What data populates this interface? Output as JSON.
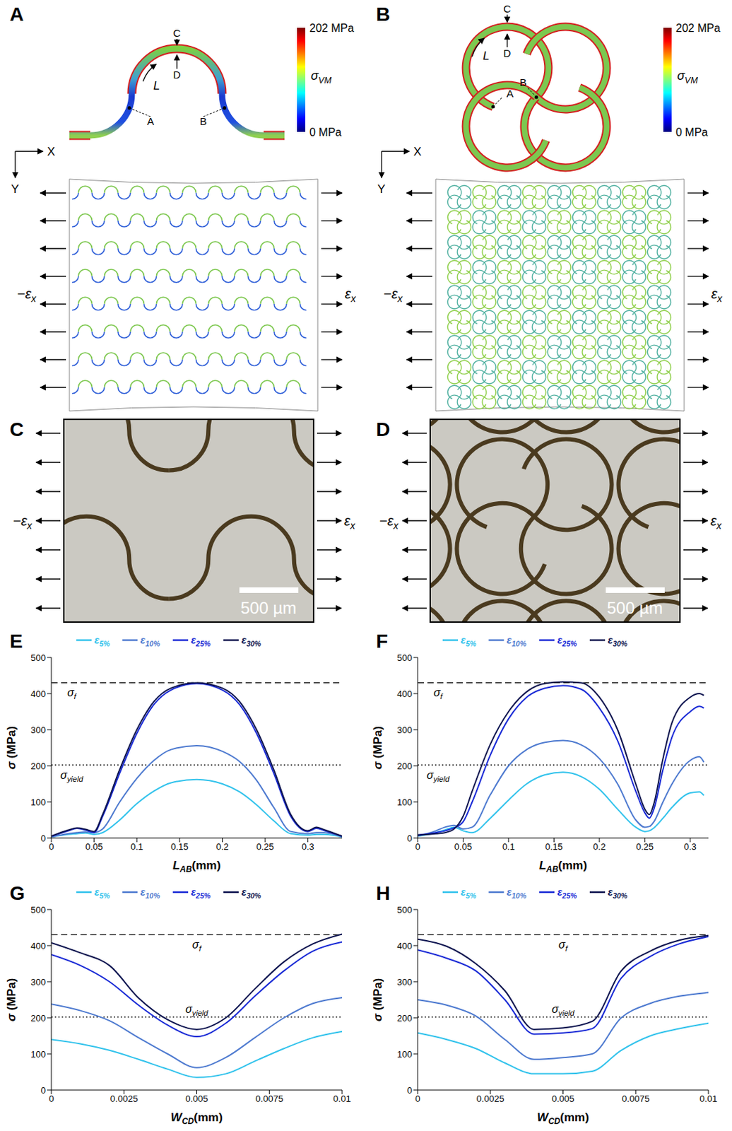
{
  "panels": {
    "A": {
      "letter": "A",
      "axes": [
        "X",
        "Y"
      ],
      "points": [
        "A",
        "B",
        "C",
        "D"
      ],
      "arc_label": "L",
      "colorbar": {
        "label": "σVM",
        "range": [
          0,
          202
        ],
        "ticks": [
          {
            "value": 202,
            "label": "202 MPa"
          },
          {
            "value": 0,
            "label": "0 MPa"
          }
        ]
      },
      "strain_labels": [
        "−εx",
        "εx"
      ]
    },
    "B": {
      "letter": "B",
      "axes": [
        "X",
        "Y"
      ],
      "points": [
        "A",
        "B",
        "C",
        "D"
      ],
      "arc_label": "L",
      "colorbar": {
        "label": "σVM",
        "range": [
          0,
          202
        ],
        "ticks": [
          {
            "value": 202,
            "label": "202 MPa"
          },
          {
            "value": 0,
            "label": "0 MPa"
          }
        ]
      },
      "strain_labels": [
        "−εx",
        "εx"
      ]
    },
    "C": {
      "letter": "C",
      "strain_labels": [
        "−εx",
        "εx"
      ],
      "scale_bar": "500 µm"
    },
    "D": {
      "letter": "D",
      "strain_labels": [
        "−εx",
        "εx"
      ],
      "scale_bar": "500 µm"
    }
  },
  "chart_data": [
    {
      "panel": "E",
      "type": "line",
      "legend": "top",
      "x_label": {
        "text": "L",
        "sub": "AB",
        "after": "(mm)"
      },
      "y_label": "σ (MPa)",
      "xlim": [
        0,
        0.34
      ],
      "xticks": [
        0,
        0.05,
        0.1,
        0.15,
        0.2,
        0.25,
        0.3
      ],
      "ylim": [
        0,
        500
      ],
      "yticks": [
        0,
        100,
        200,
        300,
        400,
        500
      ],
      "reference_lines": [
        {
          "name": "σf",
          "value": 430,
          "line_style": "dashed"
        },
        {
          "name": "σyield",
          "value": 202,
          "line_style": "dotted"
        }
      ],
      "x": [
        0,
        0.02,
        0.03,
        0.04,
        0.05,
        0.06,
        0.08,
        0.1,
        0.12,
        0.14,
        0.17,
        0.2,
        0.22,
        0.24,
        0.26,
        0.28,
        0.3,
        0.31,
        0.32,
        0.34
      ],
      "series": [
        {
          "name": "ε5%",
          "color": "#33c3ec",
          "values": [
            3,
            10,
            12,
            14,
            10,
            15,
            50,
            95,
            130,
            153,
            162,
            150,
            128,
            92,
            48,
            12,
            8,
            10,
            10,
            3
          ]
        },
        {
          "name": "ε10%",
          "color": "#4f7bd0",
          "values": [
            3,
            12,
            15,
            17,
            15,
            25,
            100,
            165,
            215,
            245,
            256,
            240,
            212,
            160,
            85,
            18,
            12,
            15,
            15,
            3
          ]
        },
        {
          "name": "ε25%",
          "color": "#1a2bd6",
          "values": [
            5,
            20,
            27,
            22,
            15,
            60,
            180,
            290,
            370,
            410,
            428,
            410,
            370,
            290,
            180,
            60,
            18,
            27,
            20,
            5
          ]
        },
        {
          "name": "ε30%",
          "color": "#0d1450",
          "values": [
            5,
            22,
            28,
            24,
            18,
            65,
            190,
            300,
            378,
            415,
            430,
            415,
            378,
            300,
            190,
            65,
            20,
            30,
            22,
            5
          ]
        }
      ]
    },
    {
      "panel": "F",
      "type": "line",
      "legend": "top",
      "x_label": {
        "text": "L",
        "sub": "AB",
        "after": "(mm)"
      },
      "y_label": "σ (MPa)",
      "xlim": [
        0,
        0.32
      ],
      "xticks": [
        0,
        0.05,
        0.1,
        0.15,
        0.2,
        0.25,
        0.3
      ],
      "ylim": [
        0,
        500
      ],
      "yticks": [
        0,
        100,
        200,
        300,
        400,
        500
      ],
      "reference_lines": [
        {
          "name": "σf",
          "value": 430,
          "line_style": "dashed"
        },
        {
          "name": "σyield",
          "value": 202,
          "line_style": "dotted"
        }
      ],
      "x": [
        0,
        0.02,
        0.03,
        0.04,
        0.05,
        0.06,
        0.08,
        0.1,
        0.12,
        0.14,
        0.16,
        0.18,
        0.2,
        0.22,
        0.24,
        0.25,
        0.255,
        0.26,
        0.27,
        0.28,
        0.3,
        0.31,
        0.315
      ],
      "series": [
        {
          "name": "ε5%",
          "color": "#33c3ec",
          "values": [
            5,
            15,
            22,
            30,
            20,
            15,
            55,
            105,
            150,
            175,
            182,
            170,
            135,
            80,
            30,
            18,
            20,
            28,
            55,
            85,
            125,
            128,
            118
          ]
        },
        {
          "name": "ε10%",
          "color": "#4f7bd0",
          "values": [
            5,
            20,
            30,
            35,
            25,
            30,
            120,
            200,
            245,
            265,
            270,
            258,
            220,
            150,
            50,
            30,
            32,
            45,
            100,
            150,
            215,
            225,
            210
          ]
        },
        {
          "name": "ε25%",
          "color": "#1a2bd6",
          "values": [
            8,
            15,
            20,
            28,
            45,
            100,
            230,
            330,
            390,
            415,
            422,
            412,
            360,
            270,
            130,
            70,
            55,
            80,
            190,
            280,
            350,
            365,
            360
          ]
        },
        {
          "name": "ε30%",
          "color": "#0d1450",
          "values": [
            8,
            12,
            15,
            25,
            60,
            130,
            260,
            350,
            405,
            428,
            432,
            430,
            390,
            300,
            150,
            80,
            65,
            95,
            220,
            320,
            390,
            400,
            395
          ]
        }
      ]
    },
    {
      "panel": "G",
      "type": "line",
      "legend": "top",
      "x_label": {
        "text": "W",
        "sub": "CD",
        "after": "(mm)"
      },
      "y_label": "σ (MPa)",
      "xlim": [
        0,
        0.01
      ],
      "xticks": [
        0,
        0.0025,
        0.005,
        0.0075,
        0.01
      ],
      "ylim": [
        0,
        500
      ],
      "yticks": [
        0,
        100,
        200,
        300,
        400,
        500
      ],
      "reference_lines": [
        {
          "name": "σf",
          "value": 430,
          "line_style": "dashed"
        },
        {
          "name": "σyield",
          "value": 202,
          "line_style": "dotted"
        }
      ],
      "x": [
        0,
        0.001,
        0.002,
        0.003,
        0.004,
        0.005,
        0.006,
        0.007,
        0.008,
        0.009,
        0.01
      ],
      "series": [
        {
          "name": "ε5%",
          "color": "#33c3ec",
          "values": [
            140,
            128,
            110,
            85,
            58,
            35,
            45,
            80,
            115,
            145,
            162
          ]
        },
        {
          "name": "ε10%",
          "color": "#4f7bd0",
          "values": [
            238,
            220,
            192,
            145,
            100,
            62,
            90,
            145,
            200,
            240,
            256
          ]
        },
        {
          "name": "ε25%",
          "color": "#1a2bd6",
          "values": [
            375,
            345,
            300,
            235,
            180,
            148,
            185,
            260,
            330,
            385,
            410
          ]
        },
        {
          "name": "ε30%",
          "color": "#0d1450",
          "values": [
            408,
            380,
            345,
            255,
            195,
            168,
            200,
            280,
            355,
            405,
            432
          ]
        }
      ]
    },
    {
      "panel": "H",
      "type": "line",
      "legend": "top",
      "x_label": {
        "text": "W",
        "sub": "CD",
        "after": "(mm)"
      },
      "y_label": "σ (MPa)",
      "xlim": [
        0,
        0.01
      ],
      "xticks": [
        0,
        0.0025,
        0.005,
        0.0075,
        0.01
      ],
      "ylim": [
        0,
        500
      ],
      "yticks": [
        0,
        100,
        200,
        300,
        400,
        500
      ],
      "reference_lines": [
        {
          "name": "σf",
          "value": 430,
          "line_style": "dashed"
        },
        {
          "name": "σyield",
          "value": 202,
          "line_style": "dotted"
        }
      ],
      "x": [
        0,
        0.001,
        0.002,
        0.003,
        0.004,
        0.005,
        0.006,
        0.007,
        0.008,
        0.009,
        0.01
      ],
      "series": [
        {
          "name": "ε5%",
          "color": "#33c3ec",
          "values": [
            158,
            140,
            115,
            75,
            45,
            45,
            52,
            110,
            150,
            170,
            185
          ]
        },
        {
          "name": "ε10%",
          "color": "#4f7bd0",
          "values": [
            250,
            235,
            205,
            140,
            85,
            90,
            100,
            200,
            240,
            260,
            270
          ]
        },
        {
          "name": "ε25%",
          "color": "#1a2bd6",
          "values": [
            388,
            365,
            330,
            250,
            155,
            158,
            170,
            310,
            370,
            405,
            425
          ]
        },
        {
          "name": "ε30%",
          "color": "#0d1450",
          "values": [
            418,
            398,
            350,
            275,
            168,
            172,
            190,
            330,
            385,
            415,
            428
          ]
        }
      ]
    }
  ]
}
